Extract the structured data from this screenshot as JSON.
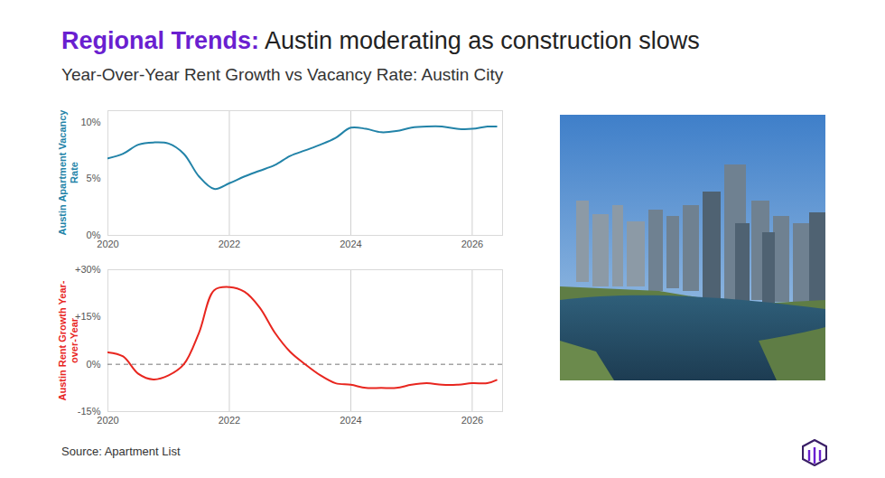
{
  "title_highlight": "Regional Trends:",
  "title": "Austin moderating as construction slows",
  "subtitle": "Year-Over-Year Rent Growth vs Vacancy Rate: Austin City",
  "source": "Source: Apartment List",
  "chart_data": [
    {
      "type": "line",
      "ylabel": "Austin Apartment Vacancy Rate",
      "color": "#2283a8",
      "x": [
        2020,
        2020.25,
        2020.5,
        2020.75,
        2021,
        2021.25,
        2021.5,
        2021.75,
        2022,
        2022.25,
        2022.5,
        2022.75,
        2023,
        2023.25,
        2023.5,
        2023.75,
        2024,
        2024.25,
        2024.5,
        2024.75,
        2025,
        2025.25,
        2025.5,
        2025.75,
        2026,
        2026.25,
        2026.4
      ],
      "values": [
        6.8,
        7.2,
        8.0,
        8.2,
        8.1,
        7.2,
        5.2,
        4.1,
        4.6,
        5.2,
        5.7,
        6.2,
        7.0,
        7.5,
        8.0,
        8.6,
        9.5,
        9.4,
        9.1,
        9.2,
        9.5,
        9.6,
        9.6,
        9.4,
        9.4,
        9.6,
        9.6
      ],
      "xlim": [
        2020,
        2026.5
      ],
      "xticks": [
        2020,
        2022,
        2024,
        2026
      ],
      "ylim": [
        0,
        11
      ],
      "yticks": [
        {
          "value": 0,
          "label": "0%"
        },
        {
          "value": 5,
          "label": "5%"
        },
        {
          "value": 10,
          "label": "10%"
        }
      ],
      "grid": "x"
    },
    {
      "type": "line",
      "ylabel": "Austin Rent Growth Year-over-Year",
      "color": "#e8261f",
      "x": [
        2020,
        2020.25,
        2020.5,
        2020.75,
        2021,
        2021.25,
        2021.5,
        2021.75,
        2022,
        2022.25,
        2022.5,
        2022.75,
        2023,
        2023.25,
        2023.5,
        2023.75,
        2024,
        2024.25,
        2024.5,
        2024.75,
        2025,
        2025.25,
        2025.5,
        2025.75,
        2026,
        2026.25,
        2026.4
      ],
      "values": [
        3.8,
        2.5,
        -3.0,
        -4.8,
        -3.5,
        0,
        10,
        23.5,
        24.5,
        23,
        18,
        10,
        4,
        0,
        -3.5,
        -6,
        -6.5,
        -7.5,
        -7.5,
        -7.5,
        -6.5,
        -6,
        -6.5,
        -6.5,
        -6,
        -6,
        -5
      ],
      "xlim": [
        2020,
        2026.5
      ],
      "xticks": [
        2020,
        2022,
        2024,
        2026
      ],
      "ylim": [
        -15,
        30
      ],
      "yticks": [
        {
          "value": -15,
          "label": "-15%"
        },
        {
          "value": 0,
          "label": "0%"
        },
        {
          "value": 15,
          "label": "+15%"
        },
        {
          "value": 30,
          "label": "+30%"
        }
      ],
      "reference_line": 0,
      "grid": "x"
    }
  ]
}
